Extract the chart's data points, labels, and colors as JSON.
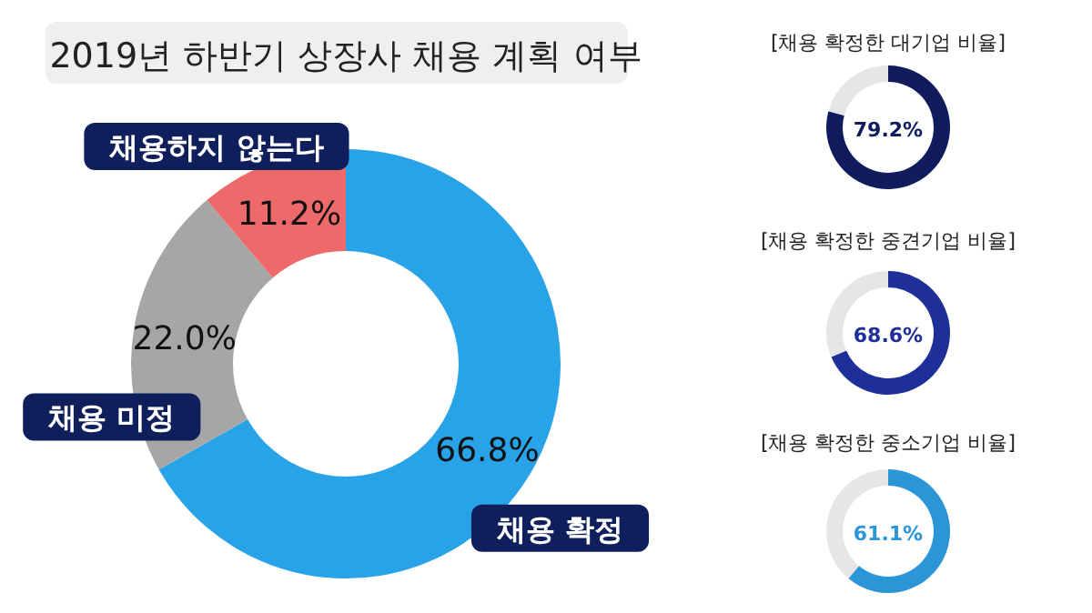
{
  "chart_data": [
    {
      "type": "donut",
      "title": "2019년 하반기 상장사 채용 계획 여부",
      "categories": [
        "채용 확정",
        "채용 미정",
        "채용하지 않는다"
      ],
      "values": [
        66.8,
        22.0,
        11.2
      ],
      "colors": [
        "#29a3e8",
        "#a6a6a6",
        "#ee6a6a"
      ],
      "value_labels": [
        "66.8%",
        "22.0%",
        "11.2%"
      ]
    },
    {
      "type": "donut",
      "title": "[채용 확정한 대기업 비율]",
      "categories": [
        null,
        null
      ],
      "values": [
        79.2,
        20.8
      ],
      "colors": [
        "#101c5e",
        "#e6e6e6"
      ],
      "value_labels": [
        "79.2%",
        null
      ]
    },
    {
      "type": "donut",
      "title": "[채용 확정한 중견기업 비율]",
      "categories": [
        null,
        null
      ],
      "values": [
        68.6,
        31.4
      ],
      "colors": [
        "#1f2f9a",
        "#e6e6e6"
      ],
      "value_labels": [
        "68.6%",
        null
      ]
    },
    {
      "type": "donut",
      "title": "[채용 확정한 중소기업 비율]",
      "categories": [
        null,
        null
      ],
      "values": [
        61.1,
        38.9
      ],
      "colors": [
        "#2a96d8",
        "#e6e6e6"
      ],
      "value_labels": [
        "61.1%",
        null
      ]
    }
  ]
}
